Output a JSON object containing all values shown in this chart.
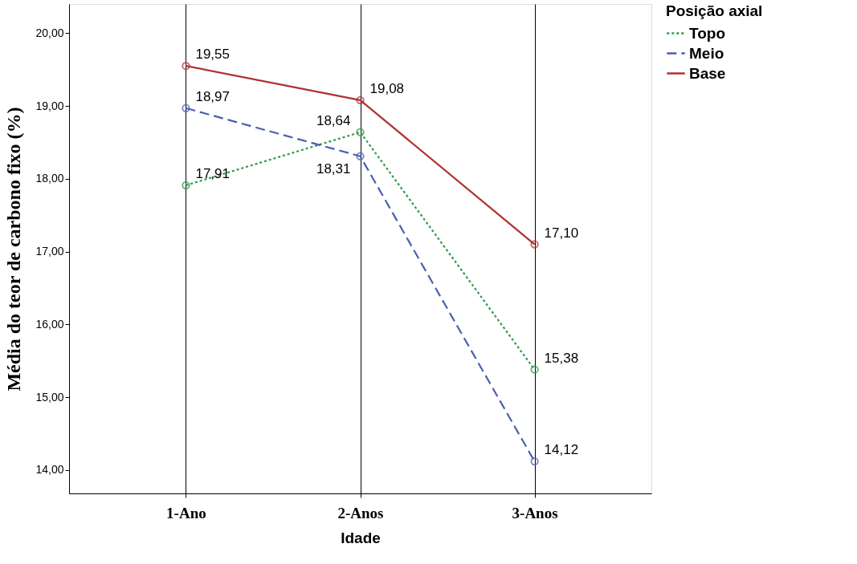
{
  "chart_data": {
    "type": "line",
    "xlabel": "Idade",
    "ylabel": "Média do teor de carbono fixo (%)",
    "legend_title": "Posição axial",
    "categories": [
      "1-Ano",
      "2-Anos",
      "3-Anos"
    ],
    "series": [
      {
        "name": "Topo",
        "color": "#2e9a4e",
        "line_style": "dotted",
        "values": [
          17.91,
          18.64,
          15.38
        ],
        "value_labels": [
          "17,91",
          "18,64",
          "15,38"
        ]
      },
      {
        "name": "Meio",
        "color": "#4a5fb0",
        "line_style": "dashed",
        "values": [
          18.97,
          18.31,
          14.12
        ],
        "value_labels": [
          "18,97",
          "18,31",
          "14,12"
        ]
      },
      {
        "name": "Base",
        "color": "#b03030",
        "line_style": "solid",
        "values": [
          19.55,
          19.08,
          17.1
        ],
        "value_labels": [
          "19,55",
          "19,08",
          "17,10"
        ]
      }
    ],
    "ylim": [
      13.68,
      20.4
    ],
    "yticks": [
      {
        "value": 14,
        "label": "14,00"
      },
      {
        "value": 15,
        "label": "15,00"
      },
      {
        "value": 16,
        "label": "16,00"
      },
      {
        "value": 17,
        "label": "17,00"
      },
      {
        "value": 18,
        "label": "18,00"
      },
      {
        "value": 19,
        "label": "19,00"
      },
      {
        "value": 20,
        "label": "20,00"
      }
    ],
    "grid": "x",
    "legend": "right",
    "marker": "circle"
  }
}
